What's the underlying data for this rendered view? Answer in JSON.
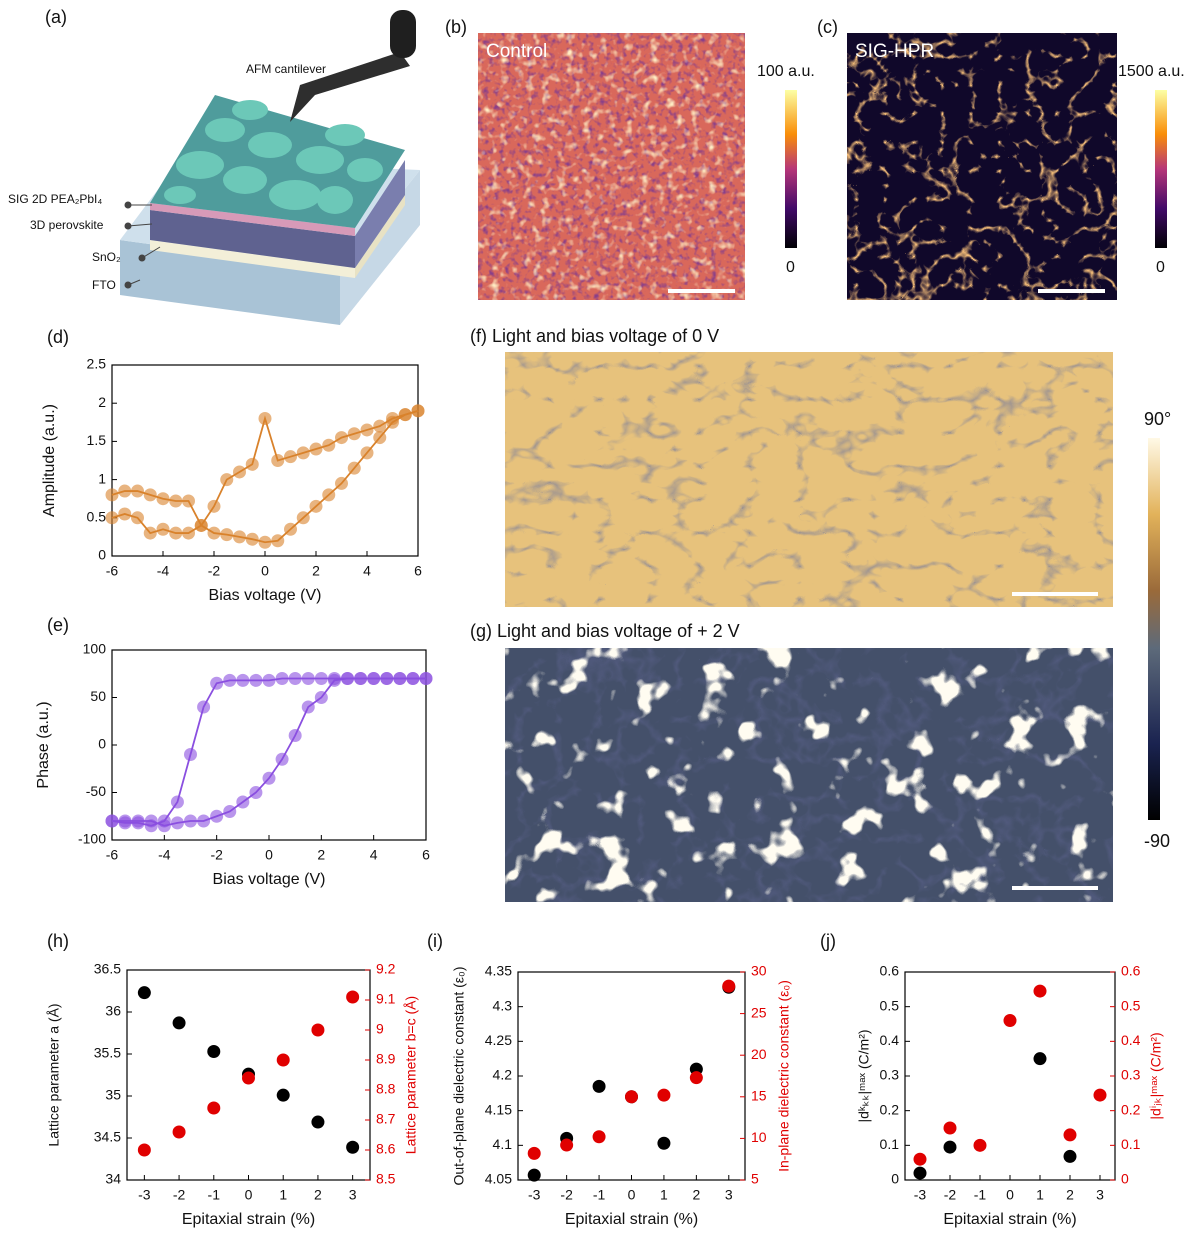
{
  "panels": {
    "a": {
      "label": "(a)",
      "cantilever": "AFM cantilever",
      "layers": [
        "SIG 2D PEA₂PbI₄",
        "3D perovskite",
        "SnO₂",
        "FTO"
      ]
    },
    "b": {
      "label": "(b)",
      "name": "Control",
      "cbar_max": "100 a.u.",
      "cbar_min": "0"
    },
    "c": {
      "label": "(c)",
      "name": "SIG-HPR",
      "cbar_max": "1500 a.u.",
      "cbar_min": "0"
    },
    "f": {
      "title": "(f) Light and bias voltage of 0 V"
    },
    "g": {
      "title": "(g) Light and bias voltage of + 2 V"
    },
    "fg_cbar": {
      "max": "90°",
      "min": "-90"
    }
  },
  "chart_data": [
    {
      "type": "scatter",
      "title": "(d)",
      "x_label": "Bias voltage (V)",
      "y_label": "Amplitude (a.u.)",
      "connected": true,
      "xlim": [
        -6,
        6
      ],
      "xticks": [
        -6,
        -4,
        -2,
        0,
        2,
        4,
        6
      ],
      "ylim": [
        0,
        2.5
      ],
      "yticks": [
        0,
        0.5,
        1,
        1.5,
        2,
        2.5
      ],
      "series": [
        {
          "color": "#d9822b",
          "x": [
            -6,
            -5.5,
            -5,
            -4.5,
            -4,
            -3.5,
            -3,
            -2.5,
            -2,
            -1.5,
            -1,
            -0.5,
            0,
            0.5,
            1,
            1.5,
            2,
            2.5,
            3,
            3.5,
            4,
            4.5,
            5,
            5.5,
            6
          ],
          "values": [
            0.8,
            0.85,
            0.85,
            0.8,
            0.75,
            0.72,
            0.72,
            0.4,
            0.3,
            0.28,
            0.25,
            0.22,
            0.18,
            0.2,
            0.35,
            0.5,
            0.65,
            0.8,
            0.95,
            1.15,
            1.35,
            1.55,
            1.75,
            1.85,
            1.9
          ]
        },
        {
          "color": "#d9822b",
          "x": [
            6,
            5.5,
            5,
            4.5,
            4,
            3.5,
            3,
            2.5,
            2,
            1.5,
            1,
            0.5,
            0,
            -0.5,
            -1,
            -1.5,
            -2,
            -2.5,
            -3,
            -3.5,
            -4,
            -4.5,
            -5,
            -5.5,
            -6
          ],
          "values": [
            1.9,
            1.85,
            1.8,
            1.7,
            1.65,
            1.6,
            1.55,
            1.45,
            1.4,
            1.35,
            1.3,
            1.25,
            1.8,
            1.2,
            1.1,
            1.0,
            0.65,
            0.4,
            0.3,
            0.3,
            0.35,
            0.3,
            0.5,
            0.55,
            0.5
          ]
        }
      ]
    },
    {
      "type": "scatter",
      "title": "(e)",
      "x_label": "Bias voltage (V)",
      "y_label": "Phase (a.u.)",
      "connected": true,
      "xlim": [
        -6,
        6
      ],
      "xticks": [
        -6,
        -4,
        -2,
        0,
        2,
        4,
        6
      ],
      "ylim": [
        -100,
        100
      ],
      "yticks": [
        -100,
        -50,
        0,
        50,
        100
      ],
      "series": [
        {
          "color": "#8a4fe0",
          "x": [
            -6,
            -5.5,
            -5,
            -4.5,
            -4,
            -3.5,
            -3,
            -2.5,
            -2,
            -1.5,
            -1,
            -0.5,
            0,
            0.5,
            1,
            1.5,
            2,
            2.5,
            3,
            3.5,
            4,
            4.5,
            5,
            5.5,
            6
          ],
          "values": [
            -80,
            -82,
            -82,
            -85,
            -80,
            -60,
            -10,
            40,
            65,
            68,
            68,
            68,
            68,
            70,
            70,
            70,
            70,
            70,
            70,
            70,
            70,
            70,
            70,
            70,
            70
          ]
        },
        {
          "color": "#8a4fe0",
          "x": [
            6,
            5.5,
            5,
            4.5,
            4,
            3.5,
            3,
            2.5,
            2,
            1.5,
            1,
            0.5,
            0,
            -0.5,
            -1,
            -1.5,
            -2,
            -2.5,
            -3,
            -3.5,
            -4,
            -4.5,
            -5,
            -5.5,
            -6
          ],
          "values": [
            70,
            70,
            70,
            70,
            70,
            70,
            70,
            68,
            50,
            40,
            10,
            -15,
            -35,
            -50,
            -60,
            -70,
            -75,
            -80,
            -80,
            -82,
            -85,
            -80,
            -80,
            -80,
            -80
          ]
        }
      ]
    },
    {
      "type": "scatter",
      "title": "(h)",
      "x_label": "Epitaxial strain (%)",
      "y_label": "Lattice parameter a (Å)",
      "y2_label": "Lattice parameter b=c (Å)",
      "xlim": [
        -3.5,
        3.5
      ],
      "xticks": [
        -3,
        -2,
        -1,
        0,
        1,
        2,
        3
      ],
      "ylim": [
        34,
        36.5
      ],
      "yticks": [
        34,
        34.5,
        35,
        35.5,
        36,
        36.5
      ],
      "y2lim": [
        8.5,
        9.2
      ],
      "y2ticks": [
        8.5,
        8.6,
        8.7,
        8.8,
        8.9,
        9,
        9.1,
        9.2
      ],
      "series": [
        {
          "color": "#000000",
          "x": [
            -3,
            -2,
            -1,
            0,
            1,
            2,
            3
          ],
          "values": [
            36.23,
            35.87,
            35.53,
            35.26,
            35.01,
            34.69,
            34.39
          ]
        },
        {
          "color": "#e00000",
          "axis": "y2",
          "x": [
            -3,
            -2,
            -1,
            0,
            1,
            2,
            3
          ],
          "values": [
            8.6,
            8.66,
            8.74,
            8.84,
            8.9,
            9.0,
            9.11
          ]
        }
      ]
    },
    {
      "type": "scatter",
      "title": "(i)",
      "x_label": "Epitaxial strain (%)",
      "y_label": "Out-of-plane dielectric constant (ε₀)",
      "y2_label": "In-plane dielectric constant (ε₀)",
      "xlim": [
        -3.5,
        3.5
      ],
      "xticks": [
        -3,
        -2,
        -1,
        0,
        1,
        2,
        3
      ],
      "ylim": [
        4.05,
        4.35
      ],
      "yticks": [
        4.05,
        4.1,
        4.15,
        4.2,
        4.25,
        4.3,
        4.35
      ],
      "y2lim": [
        5,
        30
      ],
      "y2ticks": [
        5,
        10,
        15,
        20,
        25,
        30
      ],
      "series": [
        {
          "color": "#000000",
          "x": [
            -3,
            -2,
            -1,
            0,
            1,
            2,
            3
          ],
          "values": [
            4.057,
            4.11,
            4.185,
            4.17,
            4.103,
            4.21,
            4.328
          ]
        },
        {
          "color": "#e00000",
          "axis": "y2",
          "x": [
            -3,
            -2,
            -1,
            0,
            1,
            2,
            3
          ],
          "values": [
            8.2,
            9.2,
            10.2,
            15,
            15.2,
            17.3,
            28.3
          ]
        }
      ]
    },
    {
      "type": "scatter",
      "title": "(j)",
      "x_label": "Epitaxial strain (%)",
      "y_label": "|dᵏₖₖ|ᵐᵃˣ (C/m²)",
      "y2_label": "|dⁱⱼₖ|ᵐᵃˣ (C/m²)",
      "xlim": [
        -3.5,
        3.5
      ],
      "xticks": [
        -3,
        -2,
        -1,
        0,
        1,
        2,
        3
      ],
      "ylim": [
        0,
        0.6
      ],
      "yticks": [
        0,
        0.1,
        0.2,
        0.3,
        0.4,
        0.5,
        0.6
      ],
      "y2lim": [
        0,
        0.6
      ],
      "y2ticks": [
        0,
        0.1,
        0.2,
        0.3,
        0.4,
        0.5,
        0.6
      ],
      "series": [
        {
          "color": "#000000",
          "x": [
            -3,
            -2,
            1,
            2
          ],
          "values": [
            0.02,
            0.095,
            0.35,
            0.068
          ]
        },
        {
          "color": "#e00000",
          "axis": "y2",
          "x": [
            -3,
            -2,
            -1,
            0,
            1,
            2,
            3
          ],
          "values": [
            0.06,
            0.15,
            0.1,
            0.46,
            0.545,
            0.13,
            0.245
          ]
        }
      ]
    }
  ]
}
